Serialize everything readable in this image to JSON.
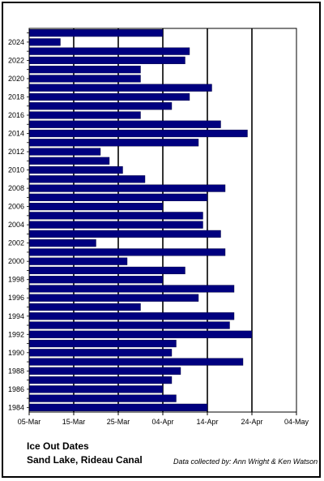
{
  "chart_data": {
    "type": "bar",
    "orientation": "horizontal",
    "title_lines": [
      "Ice Out Dates",
      "Sand Lake, Rideau Canal"
    ],
    "credit": "Data collected by: Ann Wright & Ken Watson",
    "years": [
      1984,
      1985,
      1986,
      1987,
      1988,
      1989,
      1990,
      1991,
      1992,
      1993,
      1994,
      1995,
      1996,
      1997,
      1998,
      1999,
      2000,
      2001,
      2002,
      2003,
      2004,
      2005,
      2006,
      2007,
      2008,
      2009,
      2010,
      2011,
      2012,
      2013,
      2014,
      2015,
      2016,
      2017,
      2018,
      2019,
      2020,
      2021,
      2022,
      2023,
      2024,
      2025
    ],
    "y_tick_labels": [
      "1984",
      "1986",
      "1988",
      "1990",
      "1992",
      "1994",
      "1996",
      "1998",
      "2000",
      "2002",
      "2004",
      "2006",
      "2008",
      "2010",
      "2012",
      "2014",
      "2016",
      "2018",
      "2020",
      "2022",
      "2024"
    ],
    "values": [
      "2025-04-14",
      "2025-04-07",
      "2025-04-04",
      "2025-04-06",
      "2025-04-08",
      "2025-04-22",
      "2025-04-06",
      "2025-04-07",
      "2025-04-24",
      "2025-04-19",
      "2025-04-20",
      "2025-03-30",
      "2025-04-12",
      "2025-04-20",
      "2025-04-04",
      "2025-04-09",
      "2025-03-27",
      "2025-04-18",
      "2025-03-20",
      "2025-04-17",
      "2025-04-13",
      "2025-04-13",
      "2025-04-04",
      "2025-04-14",
      "2025-04-18",
      "2025-03-31",
      "2025-03-26",
      "2025-03-23",
      "2025-03-21",
      "2025-04-12",
      "2025-04-23",
      "2025-04-17",
      "2025-03-30",
      "2025-04-06",
      "2025-04-10",
      "2025-04-15",
      "2025-03-30",
      "2025-03-30",
      "2025-04-09",
      "2025-04-10",
      "2025-03-12",
      "2025-04-04"
    ],
    "x_tick_labels": [
      "05-Mar",
      "15-Mar",
      "25-Mar",
      "04-Apr",
      "14-Apr",
      "24-Apr",
      "04-May"
    ],
    "xlim": [
      "2025-03-05",
      "2025-05-04"
    ],
    "bar_color": "#00007f",
    "grid": "vertical"
  }
}
